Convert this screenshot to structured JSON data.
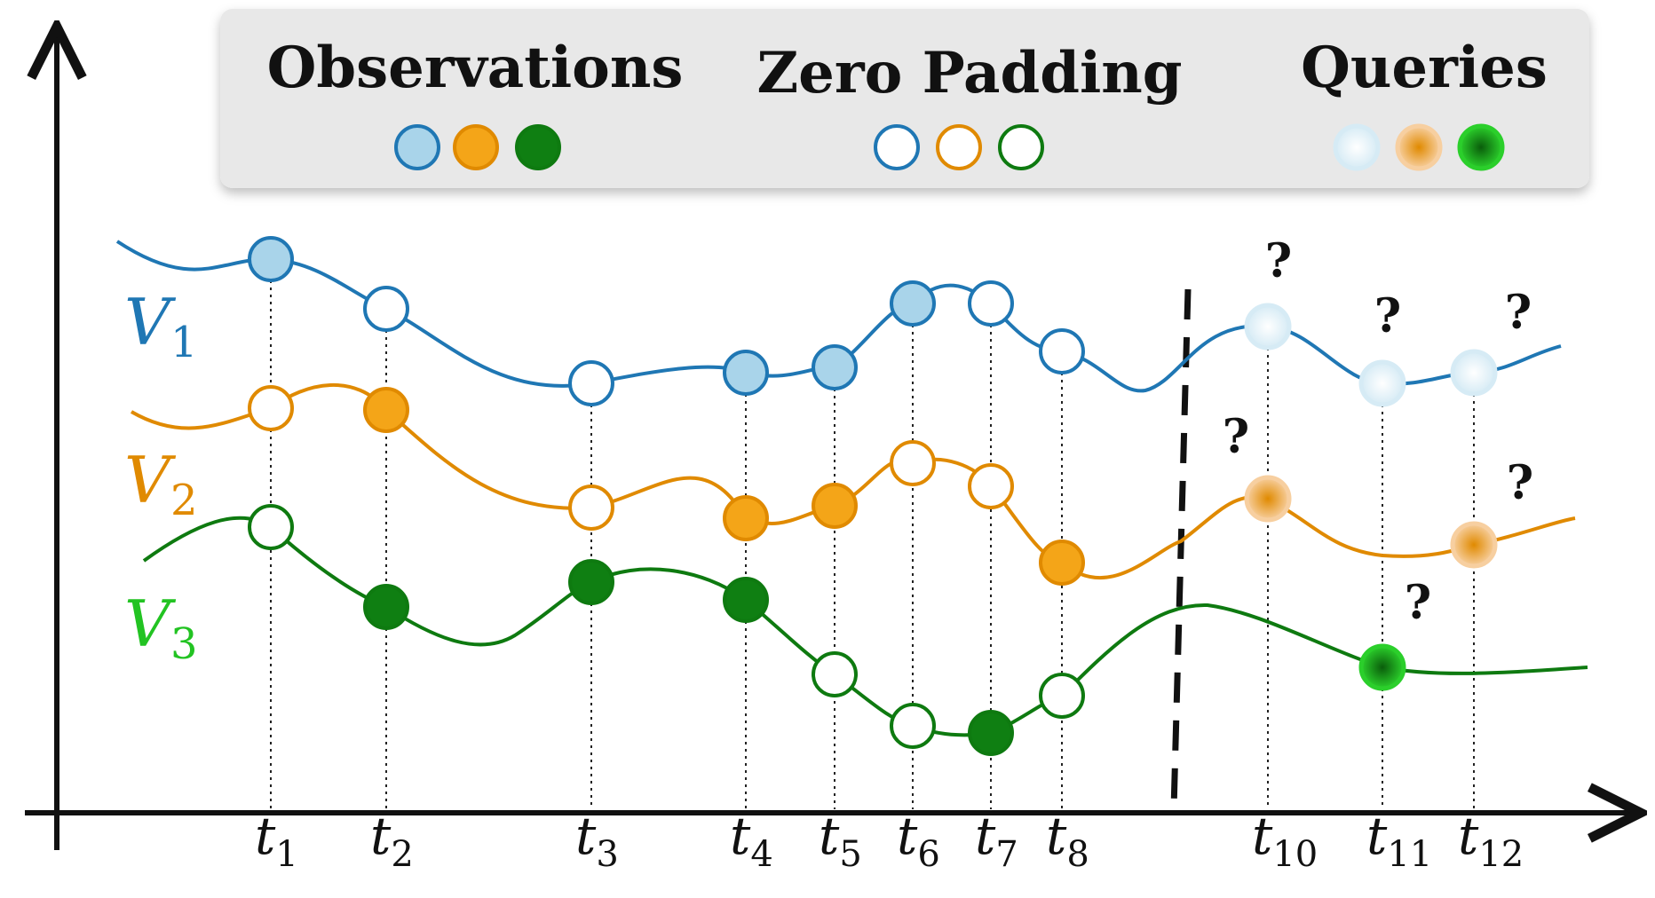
{
  "legend": {
    "observations_label": "Observations",
    "zero_padding_label": "Zero Padding",
    "queries_label": "Queries"
  },
  "variables": [
    {
      "id": "V1",
      "symbol": "V",
      "subscript": "1",
      "color": "#1f77b4",
      "fill": "#a9d4ea",
      "query_glow": "#d6ebf5"
    },
    {
      "id": "V2",
      "symbol": "V",
      "subscript": "2",
      "color": "#e08a00",
      "fill": "#f4a518",
      "query_glow": "#f7cfa0"
    },
    {
      "id": "V3",
      "symbol": "V",
      "subscript": "3",
      "color": "#0e7a10",
      "fill": "#0f7f12",
      "query_glow": "#2bcf2b"
    }
  ],
  "time_ticks": [
    {
      "id": "t1",
      "symbol": "t",
      "subscript": "1"
    },
    {
      "id": "t2",
      "symbol": "t",
      "subscript": "2"
    },
    {
      "id": "t3",
      "symbol": "t",
      "subscript": "3"
    },
    {
      "id": "t4",
      "symbol": "t",
      "subscript": "4"
    },
    {
      "id": "t5",
      "symbol": "t",
      "subscript": "5"
    },
    {
      "id": "t6",
      "symbol": "t",
      "subscript": "6"
    },
    {
      "id": "t7",
      "symbol": "t",
      "subscript": "7"
    },
    {
      "id": "t8",
      "symbol": "t",
      "subscript": "8"
    },
    {
      "id": "t10",
      "symbol": "t",
      "subscript": "10"
    },
    {
      "id": "t11",
      "symbol": "t",
      "subscript": "11"
    },
    {
      "id": "t12",
      "symbol": "t",
      "subscript": "12"
    }
  ],
  "query_mark": "?",
  "point_status_by_tick": {
    "V1": {
      "t1": "observed",
      "t2": "padding",
      "t3": "padding",
      "t4": "observed",
      "t5": "observed",
      "t6": "observed",
      "t7": "padding",
      "t8": "padding",
      "t10": "query",
      "t11": "query",
      "t12": "query"
    },
    "V2": {
      "t1": "padding",
      "t2": "observed",
      "t3": "padding",
      "t4": "observed",
      "t5": "observed",
      "t6": "padding",
      "t7": "padding",
      "t8": "observed",
      "t10": "query",
      "t12": "query"
    },
    "V3": {
      "t1": "padding",
      "t2": "observed",
      "t3": "observed",
      "t4": "observed",
      "t5": "padding",
      "t6": "padding",
      "t7": "observed",
      "t8": "padding",
      "t11": "query"
    }
  }
}
